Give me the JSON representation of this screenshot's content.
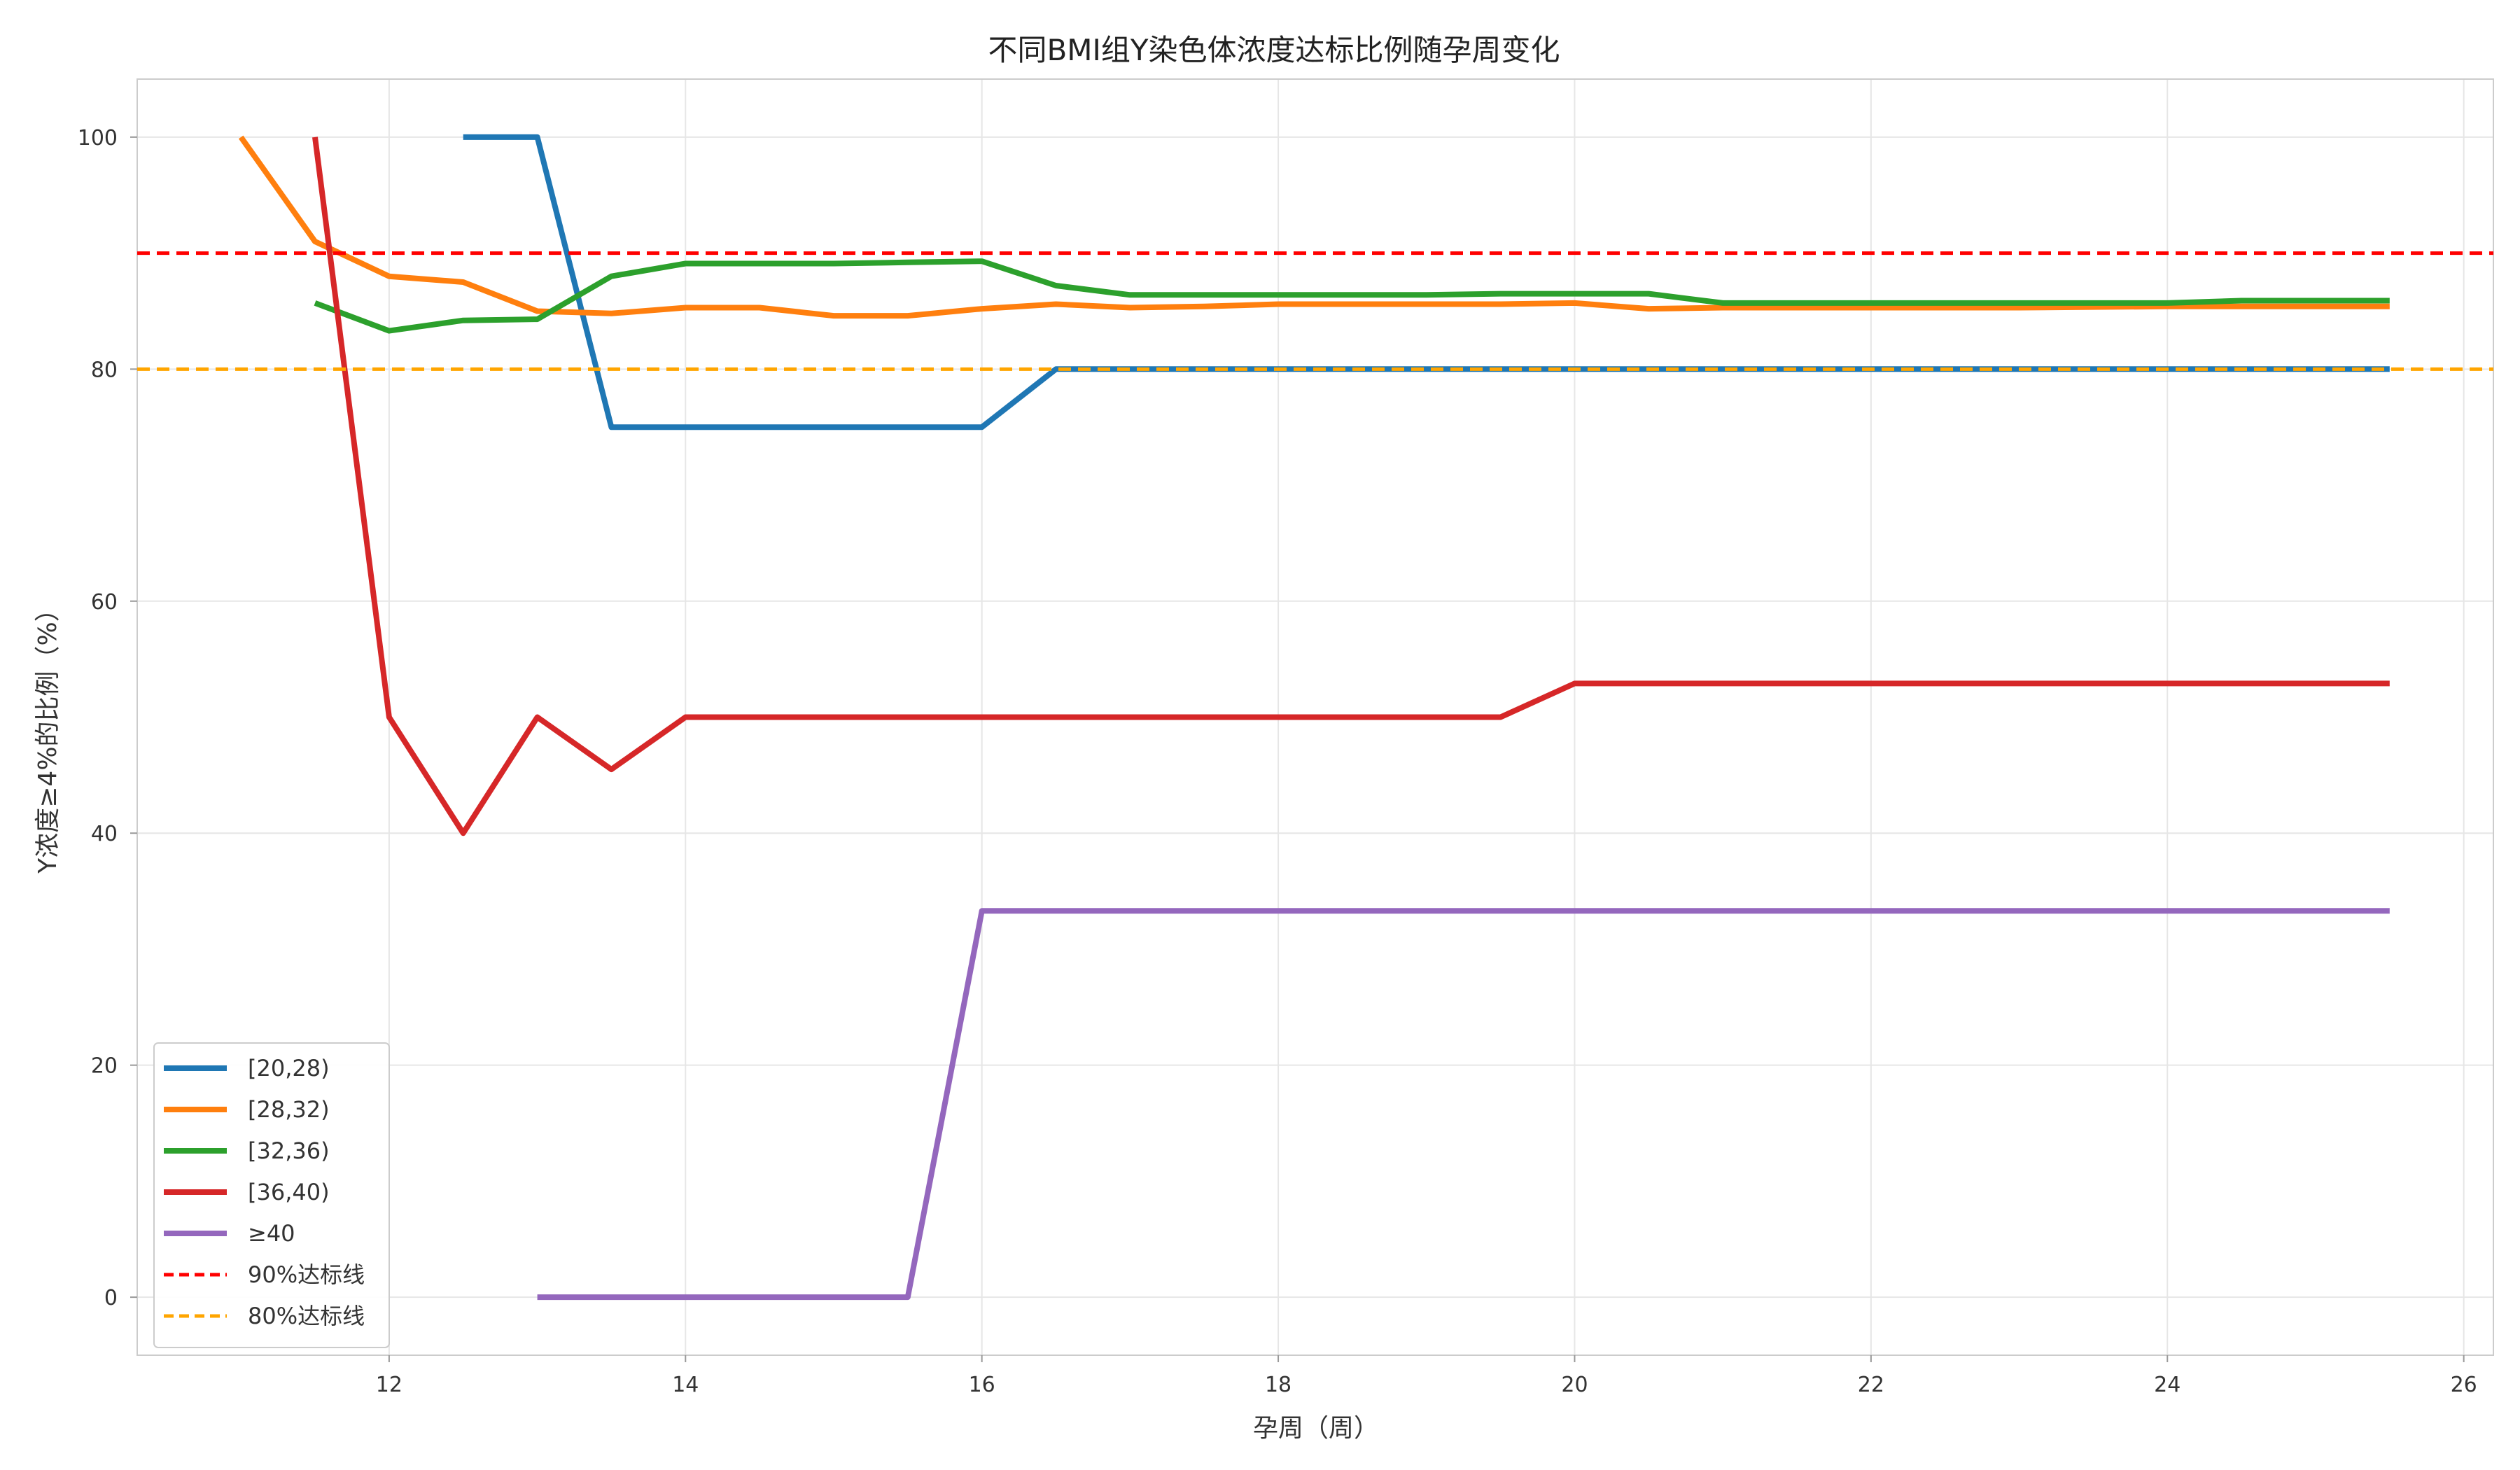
{
  "chart_data": {
    "type": "line",
    "title": "不同BMI组Y染色体浓度达标比例随孕周变化",
    "xlabel": "孕周（周）",
    "ylabel": "Y浓度≥4%的比例（%）",
    "xlim": [
      10.3,
      26.2
    ],
    "ylim": [
      -5,
      105
    ],
    "xticks": [
      12,
      14,
      16,
      18,
      20,
      22,
      24,
      26
    ],
    "yticks": [
      0,
      20,
      40,
      60,
      80,
      100
    ],
    "grid": true,
    "legend_position": "lower-left",
    "series": [
      {
        "name": "[20,28)",
        "color": "#1f77b4",
        "dashed": false,
        "points": [
          [
            12.5,
            100
          ],
          [
            13.0,
            100
          ],
          [
            13.5,
            75
          ],
          [
            14.0,
            75
          ],
          [
            14.5,
            75
          ],
          [
            15.0,
            75
          ],
          [
            15.5,
            75
          ],
          [
            16.0,
            75
          ],
          [
            16.5,
            80
          ],
          [
            17.0,
            80
          ],
          [
            18.0,
            80
          ],
          [
            19.0,
            80
          ],
          [
            20.0,
            80
          ],
          [
            21.0,
            80
          ],
          [
            22.0,
            80
          ],
          [
            23.0,
            80
          ],
          [
            24.0,
            80
          ],
          [
            25.0,
            80
          ],
          [
            25.5,
            80
          ]
        ]
      },
      {
        "name": "[28,32)",
        "color": "#ff7f0e",
        "dashed": false,
        "points": [
          [
            11.0,
            100
          ],
          [
            11.5,
            91
          ],
          [
            12.0,
            88
          ],
          [
            12.5,
            87.5
          ],
          [
            13.0,
            85
          ],
          [
            13.5,
            84.8
          ],
          [
            14.0,
            85.3
          ],
          [
            14.5,
            85.3
          ],
          [
            15.0,
            84.6
          ],
          [
            15.5,
            84.6
          ],
          [
            16.0,
            85.2
          ],
          [
            16.5,
            85.6
          ],
          [
            17.0,
            85.3
          ],
          [
            17.5,
            85.4
          ],
          [
            18.0,
            85.6
          ],
          [
            18.5,
            85.6
          ],
          [
            19.0,
            85.6
          ],
          [
            19.5,
            85.6
          ],
          [
            20.0,
            85.7
          ],
          [
            20.5,
            85.2
          ],
          [
            21.0,
            85.3
          ],
          [
            22.0,
            85.3
          ],
          [
            23.0,
            85.3
          ],
          [
            24.0,
            85.4
          ],
          [
            25.0,
            85.4
          ],
          [
            25.5,
            85.4
          ]
        ]
      },
      {
        "name": "[32,36)",
        "color": "#2ca02c",
        "dashed": false,
        "points": [
          [
            11.5,
            85.7
          ],
          [
            12.0,
            83.3
          ],
          [
            12.5,
            84.2
          ],
          [
            13.0,
            84.3
          ],
          [
            13.5,
            88.0
          ],
          [
            14.0,
            89.1
          ],
          [
            14.5,
            89.1
          ],
          [
            15.0,
            89.1
          ],
          [
            15.5,
            89.2
          ],
          [
            16.0,
            89.3
          ],
          [
            16.5,
            87.2
          ],
          [
            17.0,
            86.4
          ],
          [
            18.0,
            86.4
          ],
          [
            19.0,
            86.4
          ],
          [
            19.5,
            86.5
          ],
          [
            20.0,
            86.5
          ],
          [
            20.5,
            86.5
          ],
          [
            21.0,
            85.7
          ],
          [
            22.0,
            85.7
          ],
          [
            23.0,
            85.7
          ],
          [
            24.0,
            85.7
          ],
          [
            24.5,
            85.9
          ],
          [
            25.5,
            85.9
          ]
        ]
      },
      {
        "name": "[36,40)",
        "color": "#d62728",
        "dashed": false,
        "points": [
          [
            11.5,
            100
          ],
          [
            12.0,
            50
          ],
          [
            12.5,
            40
          ],
          [
            13.0,
            50
          ],
          [
            13.5,
            45.5
          ],
          [
            14.0,
            50
          ],
          [
            15.0,
            50
          ],
          [
            16.0,
            50
          ],
          [
            17.0,
            50
          ],
          [
            18.0,
            50
          ],
          [
            19.0,
            50
          ],
          [
            19.5,
            50
          ],
          [
            20.0,
            52.9
          ],
          [
            21.0,
            52.9
          ],
          [
            22.0,
            52.9
          ],
          [
            23.0,
            52.9
          ],
          [
            24.0,
            52.9
          ],
          [
            25.0,
            52.9
          ],
          [
            25.5,
            52.9
          ]
        ]
      },
      {
        "name": "≥40",
        "color": "#9467bd",
        "dashed": false,
        "points": [
          [
            13.0,
            0
          ],
          [
            14.0,
            0
          ],
          [
            15.0,
            0
          ],
          [
            15.5,
            0
          ],
          [
            16.0,
            33.3
          ],
          [
            17.0,
            33.3
          ],
          [
            18.0,
            33.3
          ],
          [
            19.0,
            33.3
          ],
          [
            20.0,
            33.3
          ],
          [
            21.0,
            33.3
          ],
          [
            22.0,
            33.3
          ],
          [
            23.0,
            33.3
          ],
          [
            24.0,
            33.3
          ],
          [
            25.0,
            33.3
          ],
          [
            25.5,
            33.3
          ]
        ]
      },
      {
        "name": "90%达标线",
        "color": "#ff0000",
        "dashed": true,
        "hline": 90
      },
      {
        "name": "80%达标线",
        "color": "#ffa500",
        "dashed": true,
        "hline": 80
      }
    ]
  }
}
